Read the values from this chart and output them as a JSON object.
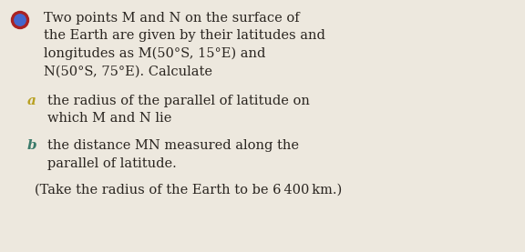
{
  "background_color": "#ede8de",
  "main_text_lines": [
    "Two points M and N on the surface of",
    "the Earth are given by their latitudes and",
    "longitudes as M(50°S, 15°E) and",
    "N(50°S, 75°E). Calculate"
  ],
  "part_a_label": "a",
  "part_a_lines": [
    "the radius of the parallel of latitude on",
    "which M and N lie"
  ],
  "part_b_label": "b",
  "part_b_lines": [
    "the distance MN measured along the",
    "parallel of latitude."
  ],
  "footnote": "(Take the radius of the Earth to be 6 400 km.)",
  "text_color": "#2a2520",
  "label_a_color": "#b8a020",
  "label_b_color": "#3a7a6a",
  "bullet_outer_color": "#aa2222",
  "bullet_inner_color": "#4466cc",
  "font_size": 10.5,
  "label_font_size": 11.0,
  "fig_width": 5.76,
  "fig_height": 2.77,
  "dpi": 100
}
